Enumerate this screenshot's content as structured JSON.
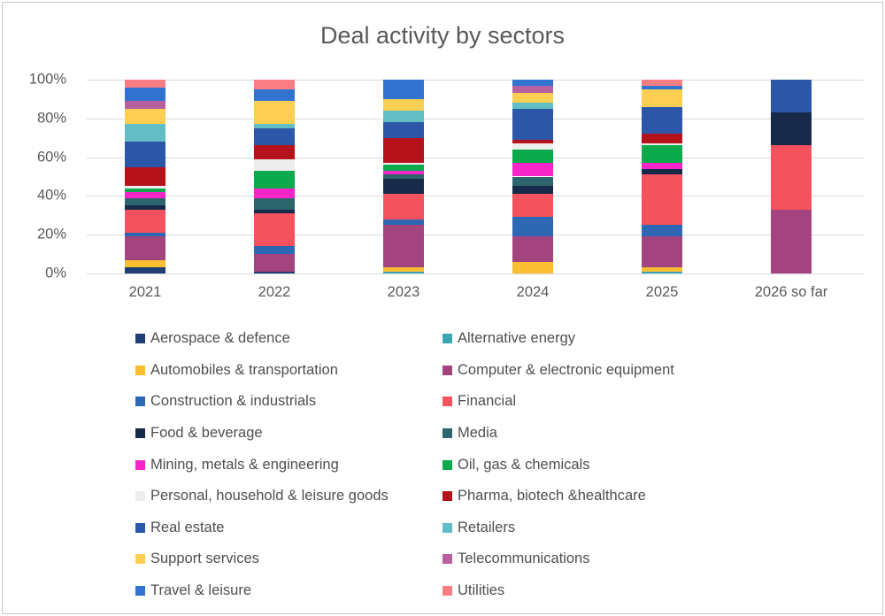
{
  "title": "Deal activity by sectors",
  "colors": {
    "text": "#595959",
    "legend_text": "#4f4f4f",
    "grid": "#d9d9d9",
    "border": "#c9c9c9",
    "background": "#ffffff"
  },
  "chart_data": {
    "type": "bar",
    "subtype": "stacked-percent-column",
    "title": "Deal activity by sectors",
    "categories": [
      "2021",
      "2022",
      "2023",
      "2024",
      "2025",
      "2026 so far"
    ],
    "xlabel": "",
    "ylabel": "",
    "ylim": [
      0,
      100
    ],
    "y_ticks": [
      {
        "label": "100%",
        "value": 100
      },
      {
        "label": "80%",
        "value": 80
      },
      {
        "label": "60%",
        "value": 60
      },
      {
        "label": "40%",
        "value": 40
      },
      {
        "label": "20%",
        "value": 20
      },
      {
        "label": "0%",
        "value": 0
      }
    ],
    "grid": true,
    "legend_position": "bottom-two-columns",
    "series": [
      {
        "name": "Aerospace & defence",
        "color": "#1f3e73",
        "values": [
          3,
          1,
          0,
          0,
          0,
          0
        ]
      },
      {
        "name": "Alternative energy",
        "color": "#3aa7b3",
        "values": [
          0,
          0,
          1,
          0,
          1,
          0
        ]
      },
      {
        "name": "Automobiles & transportation",
        "color": "#f9be31",
        "values": [
          4,
          0,
          2,
          6,
          2,
          0
        ]
      },
      {
        "name": "Computer & electronic equipment",
        "color": "#a3447f",
        "values": [
          12,
          9,
          22,
          13,
          16,
          33
        ]
      },
      {
        "name": "Construction & industrials",
        "color": "#2e68b4",
        "values": [
          2,
          4,
          3,
          10,
          6,
          0
        ]
      },
      {
        "name": "Financial",
        "color": "#f4525e",
        "values": [
          12,
          17,
          13,
          12,
          26,
          33
        ]
      },
      {
        "name": "Food & beverage",
        "color": "#172a4a",
        "values": [
          2,
          2,
          8,
          4,
          3,
          17
        ]
      },
      {
        "name": "Media",
        "color": "#2d656c",
        "values": [
          4,
          6,
          2,
          5,
          0,
          0
        ]
      },
      {
        "name": "Mining, metals & engineering",
        "color": "#f826c8",
        "values": [
          3,
          5,
          2,
          7,
          3,
          0
        ]
      },
      {
        "name": "Oil, gas & chemicals",
        "color": "#0caa4d",
        "values": [
          2,
          9,
          3,
          7,
          9,
          0
        ]
      },
      {
        "name": "Personal, household & leisure goods",
        "color": "#ededee",
        "values": [
          1,
          6,
          1,
          3,
          1,
          0
        ]
      },
      {
        "name": "Pharma, biotech &healthcare",
        "color": "#b5121b",
        "values": [
          10,
          7,
          13,
          2,
          5,
          0
        ]
      },
      {
        "name": "Real estate",
        "color": "#2c57a9",
        "values": [
          13,
          9,
          8,
          16,
          14,
          17
        ]
      },
      {
        "name": "Retailers",
        "color": "#62bec4",
        "values": [
          9,
          2,
          6,
          3,
          0,
          0
        ]
      },
      {
        "name": "Support services",
        "color": "#fcce51",
        "values": [
          8,
          12,
          6,
          5,
          9,
          0
        ]
      },
      {
        "name": "Telecommunications",
        "color": "#b8609f",
        "values": [
          4,
          0,
          0,
          4,
          0,
          0
        ]
      },
      {
        "name": "Travel & leisure",
        "color": "#3273d2",
        "values": [
          7,
          6,
          10,
          3,
          2,
          0
        ]
      },
      {
        "name": "Utilities",
        "color": "#f87e83",
        "values": [
          4,
          5,
          0,
          0,
          3,
          0
        ]
      }
    ]
  }
}
